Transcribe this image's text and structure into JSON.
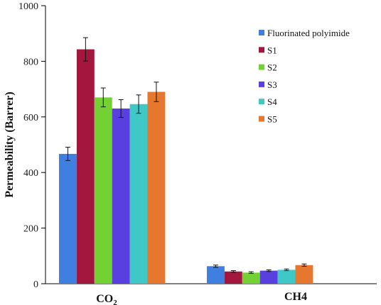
{
  "chart_data": {
    "type": "bar",
    "ylabel": "Permeability (Barrer)",
    "ylim": [
      0,
      1000
    ],
    "yticks": [
      "0",
      "200",
      "400",
      "600",
      "800",
      "1000"
    ],
    "categories": [
      "CO2",
      "CH4"
    ],
    "legend_position": "top-right",
    "grid": false,
    "series": [
      {
        "name": "Fluorinated polyimide",
        "color": "#3F7FE0",
        "values": [
          467,
          63
        ],
        "errors": [
          24,
          4
        ]
      },
      {
        "name": "S1",
        "color": "#A3173F",
        "values": [
          843,
          44
        ],
        "errors": [
          42,
          3
        ]
      },
      {
        "name": "S2",
        "color": "#74D133",
        "values": [
          670,
          40
        ],
        "errors": [
          34,
          3
        ]
      },
      {
        "name": "S3",
        "color": "#5A3FE0",
        "values": [
          630,
          47
        ],
        "errors": [
          32,
          3
        ]
      },
      {
        "name": "S4",
        "color": "#3FC8C6",
        "values": [
          646,
          50
        ],
        "errors": [
          33,
          3
        ]
      },
      {
        "name": "S5",
        "color": "#E5772F",
        "values": [
          690,
          67
        ],
        "errors": [
          35,
          4
        ]
      }
    ]
  }
}
